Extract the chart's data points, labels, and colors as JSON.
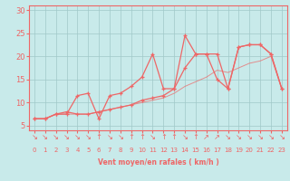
{
  "bg_color": "#c8eaea",
  "grid_color": "#a0c8c8",
  "line_color": "#ee6666",
  "xlabel": "Vent moyen/en rafales ( km/h )",
  "xlim": [
    -0.5,
    23.5
  ],
  "ylim": [
    4,
    31
  ],
  "yticks": [
    5,
    10,
    15,
    20,
    25,
    30
  ],
  "xticks": [
    0,
    1,
    2,
    3,
    4,
    5,
    6,
    7,
    8,
    9,
    10,
    11,
    12,
    13,
    14,
    15,
    16,
    17,
    18,
    19,
    20,
    21,
    22,
    23
  ],
  "line1_x": [
    0,
    1,
    2,
    3,
    4,
    5,
    6,
    7,
    8,
    9,
    10,
    11,
    12,
    13,
    14,
    15,
    16,
    17,
    18,
    19,
    20,
    21,
    22,
    23
  ],
  "line1_y": [
    6.5,
    6.5,
    7.5,
    7.5,
    11.5,
    12.0,
    6.5,
    11.5,
    12.0,
    13.5,
    15.5,
    20.5,
    13.0,
    13.0,
    24.5,
    20.5,
    20.5,
    20.5,
    13.0,
    22.0,
    22.5,
    22.5,
    20.5,
    13.0
  ],
  "line2_x": [
    0,
    1,
    2,
    3,
    4,
    5,
    6,
    7,
    8,
    9,
    10,
    11,
    12,
    13,
    14,
    15,
    16,
    17,
    18,
    19,
    20,
    21,
    22,
    23
  ],
  "line2_y": [
    6.5,
    6.5,
    7.5,
    8.0,
    7.5,
    7.5,
    8.0,
    8.5,
    9.0,
    9.5,
    10.5,
    11.0,
    11.5,
    13.0,
    17.5,
    20.5,
    20.5,
    15.0,
    13.0,
    22.0,
    22.5,
    22.5,
    20.5,
    13.0
  ],
  "line3_x": [
    0,
    1,
    2,
    3,
    4,
    5,
    6,
    7,
    8,
    9,
    10,
    11,
    12,
    13,
    14,
    15,
    16,
    17,
    18,
    19,
    20,
    21,
    22,
    23
  ],
  "line3_y": [
    6.5,
    6.5,
    7.5,
    7.5,
    7.5,
    7.5,
    8.0,
    8.5,
    9.0,
    9.5,
    10.0,
    10.5,
    11.0,
    12.0,
    13.5,
    14.5,
    15.5,
    17.0,
    16.5,
    17.5,
    18.5,
    19.0,
    20.0,
    13.0
  ],
  "wind_arrows": [
    "↘",
    "↘",
    "↘",
    "↘",
    "↘",
    "↘",
    "↑",
    "↘",
    "↘",
    "↑",
    "↑",
    "↘",
    "↑",
    "↑",
    "↘",
    "↑",
    "↗",
    "↗",
    "↘",
    "↘",
    "↘",
    "↘",
    "↘",
    "↘"
  ]
}
